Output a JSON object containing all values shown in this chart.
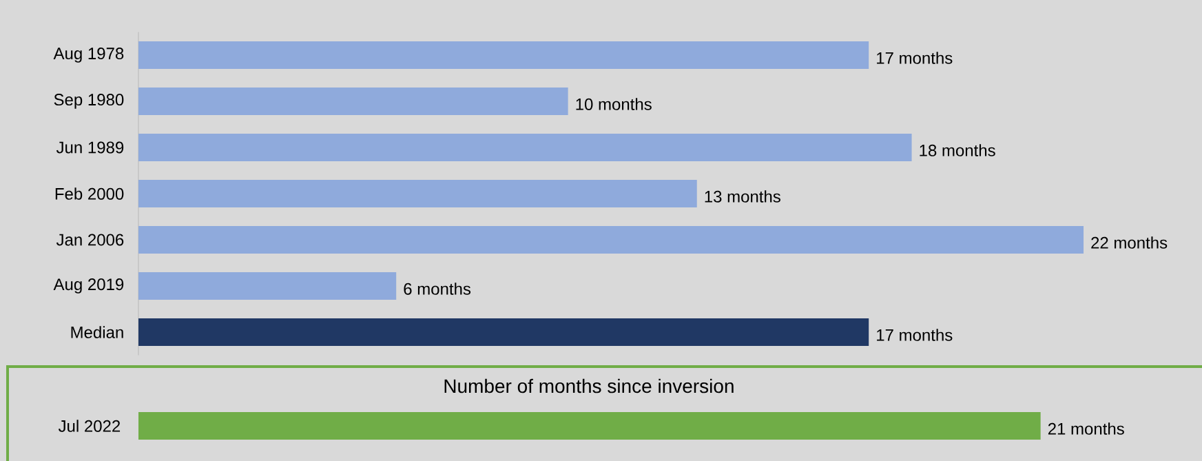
{
  "chart_data": [
    {
      "type": "bar",
      "orientation": "horizontal",
      "categories": [
        "Aug 1978",
        "Sep 1980",
        "Jun 1989",
        "Feb 2000",
        "Jan 2006",
        "Aug 2019",
        "Median"
      ],
      "values": [
        17,
        10,
        18,
        13,
        22,
        6,
        17
      ],
      "colors": [
        "#8faadc",
        "#8faadc",
        "#8faadc",
        "#8faadc",
        "#8faadc",
        "#8faadc",
        "#203864"
      ],
      "value_labels": [
        "17 months",
        "10 months",
        "18 months",
        "13 months",
        "22 months",
        "6 months",
        "17 months"
      ]
    },
    {
      "type": "bar",
      "orientation": "horizontal",
      "title": "Number of months since inversion",
      "categories": [
        "Jul 2022"
      ],
      "values": [
        21
      ],
      "color": "#70ad47",
      "value_labels": [
        "21 months"
      ]
    }
  ]
}
